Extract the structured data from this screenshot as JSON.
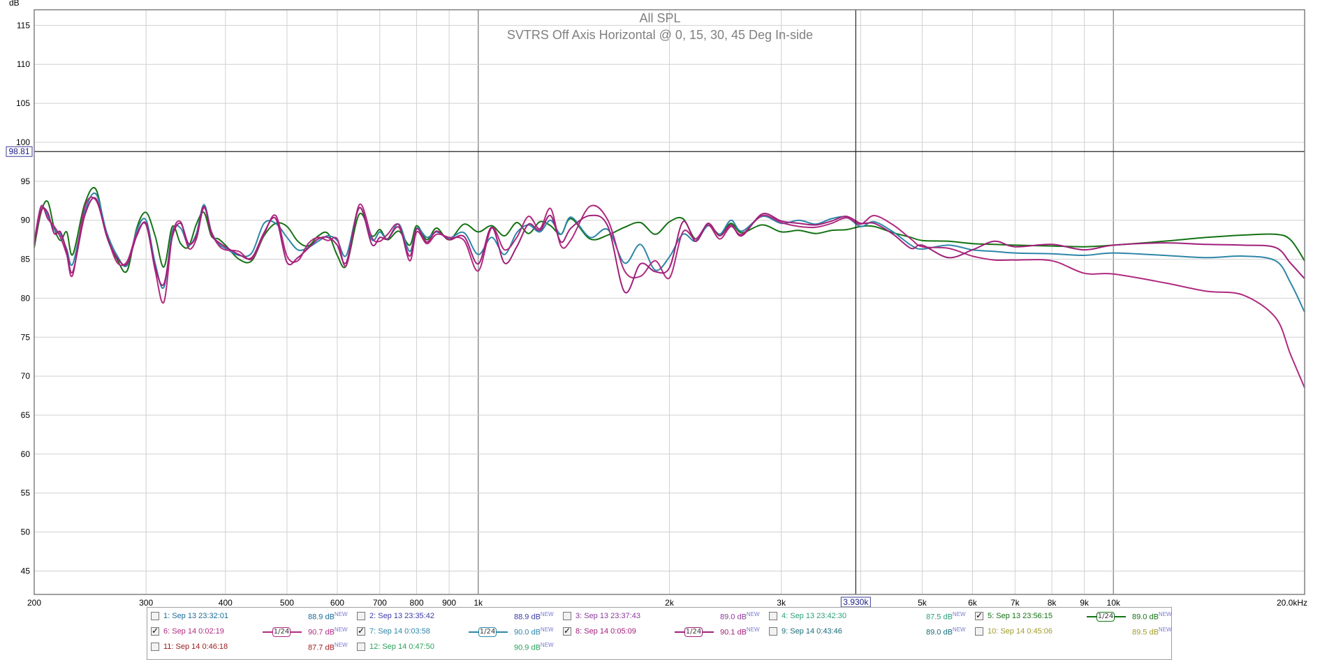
{
  "chart_data": {
    "type": "line",
    "title": "All SPL",
    "subtitle": "SVTRS Off Axis Horizontal @ 0, 15, 30, 45 Deg In-side",
    "ylabel": "dB",
    "xlabel": "",
    "x_scale": "log",
    "xlim": [
      200,
      20000
    ],
    "ylim": [
      42,
      117
    ],
    "grid": true,
    "y_ticks": [
      "45",
      "50",
      "55",
      "60",
      "65",
      "70",
      "75",
      "80",
      "85",
      "90",
      "95",
      "100",
      "105",
      "110",
      "115"
    ],
    "x_ticks": [
      {
        "v": 200,
        "label": "200"
      },
      {
        "v": 300,
        "label": "300"
      },
      {
        "v": 400,
        "label": "400"
      },
      {
        "v": 500,
        "label": "500"
      },
      {
        "v": 600,
        "label": "600"
      },
      {
        "v": 700,
        "label": "700"
      },
      {
        "v": 800,
        "label": "800"
      },
      {
        "v": 900,
        "label": "900"
      },
      {
        "v": 1000,
        "label": "1k"
      },
      {
        "v": 2000,
        "label": "2k"
      },
      {
        "v": 3000,
        "label": "3k"
      },
      {
        "v": 5000,
        "label": "5k"
      },
      {
        "v": 6000,
        "label": "6k"
      },
      {
        "v": 7000,
        "label": "7k"
      },
      {
        "v": 8000,
        "label": "8k"
      },
      {
        "v": 9000,
        "label": "9k"
      },
      {
        "v": 10000,
        "label": "10k"
      },
      {
        "v": 20000,
        "label": "20.0kHz"
      }
    ],
    "cursor": {
      "x": 3930,
      "x_label": "3.930k",
      "y": 98.81,
      "y_label": "98.81"
    },
    "series": [
      {
        "name": "5: Sep 13 23:56:15",
        "color": "#147214",
        "x": [
          200,
          205,
          210,
          215,
          220,
          225,
          230,
          240,
          250,
          260,
          270,
          280,
          290,
          300,
          310,
          320,
          330,
          340,
          350,
          360,
          370,
          380,
          390,
          400,
          420,
          440,
          460,
          480,
          500,
          520,
          540,
          560,
          580,
          600,
          620,
          650,
          680,
          700,
          720,
          750,
          780,
          800,
          830,
          860,
          900,
          950,
          1000,
          1050,
          1100,
          1150,
          1200,
          1250,
          1300,
          1350,
          1400,
          1500,
          1600,
          1700,
          1800,
          1900,
          2000,
          2100,
          2200,
          2300,
          2400,
          2500,
          2600,
          2800,
          3000,
          3200,
          3400,
          3600,
          3800,
          4000,
          4200,
          4500,
          4800,
          5000,
          5500,
          6000,
          6500,
          7000,
          8000,
          9000,
          10000,
          12000,
          14000,
          16000,
          18000,
          19000,
          20000
        ],
        "y": [
          86.5,
          91,
          92.4,
          89,
          87.4,
          88.5,
          85.6,
          92,
          94,
          88,
          85,
          83.5,
          89,
          91,
          88,
          84,
          89.2,
          87,
          86.6,
          89.5,
          91,
          88,
          87.6,
          86.8,
          85,
          84.8,
          88,
          89.6,
          89.2,
          87.3,
          86.7,
          88,
          88.3,
          85.5,
          84.2,
          90.8,
          88,
          88.8,
          87.5,
          88.6,
          86.8,
          89.3,
          87.5,
          89,
          87.5,
          89.5,
          88.5,
          89.3,
          88,
          89.7,
          88.3,
          89.8,
          89.3,
          88.2,
          90.2,
          87.6,
          88.1,
          89.1,
          89.7,
          88.2,
          89.8,
          90.2,
          87.6,
          89.4,
          88.2,
          89.6,
          88.4,
          89.4,
          88.5,
          88.7,
          88.3,
          88.7,
          88.8,
          89.2,
          89.2,
          88.4,
          87.8,
          87.4,
          87.3,
          87.0,
          86.9,
          86.8,
          86.7,
          86.6,
          86.8,
          87.3,
          87.8,
          88.1,
          88.2,
          87.5,
          84.8
        ]
      },
      {
        "name": "7: Sep 14 0:03:58",
        "color": "#2d86a8",
        "x": [
          200,
          205,
          210,
          215,
          220,
          225,
          230,
          240,
          250,
          260,
          270,
          280,
          290,
          300,
          310,
          320,
          330,
          340,
          350,
          360,
          370,
          380,
          390,
          400,
          420,
          440,
          460,
          480,
          500,
          520,
          540,
          560,
          580,
          600,
          620,
          650,
          680,
          700,
          720,
          750,
          780,
          800,
          830,
          860,
          900,
          950,
          1000,
          1050,
          1100,
          1150,
          1200,
          1250,
          1300,
          1350,
          1400,
          1500,
          1600,
          1700,
          1800,
          1900,
          2000,
          2100,
          2200,
          2300,
          2400,
          2500,
          2600,
          2800,
          3000,
          3200,
          3400,
          3600,
          3800,
          4000,
          4200,
          4500,
          4800,
          5000,
          5500,
          6000,
          6500,
          7000,
          8000,
          9000,
          10000,
          12000,
          14000,
          16000,
          18000,
          19000,
          20000
        ],
        "y": [
          87,
          91.6,
          90.6,
          88.8,
          88.2,
          86.3,
          84.4,
          91,
          93.4,
          88.5,
          85.5,
          84.2,
          88.7,
          90,
          84.5,
          81.4,
          88.6,
          89,
          86.8,
          88.3,
          92,
          88.6,
          87,
          86.4,
          85.5,
          85.8,
          89.6,
          89.6,
          87.8,
          86.2,
          86.5,
          87.3,
          88,
          87.4,
          85.5,
          91.6,
          87.5,
          88.5,
          87.6,
          89.5,
          86,
          89,
          87.8,
          88.5,
          87.7,
          88.4,
          85.6,
          87.8,
          85.6,
          88.4,
          89.4,
          88.5,
          90,
          88.2,
          90.4,
          87.8,
          88.8,
          84.5,
          86.9,
          83.6,
          85.3,
          88.2,
          87.3,
          89.3,
          88.2,
          90,
          88.6,
          90.5,
          89.6,
          90,
          89.5,
          90.2,
          90.4,
          89.2,
          89.8,
          88.5,
          86.8,
          86.3,
          86.8,
          86.2,
          86.0,
          85.8,
          85.7,
          85.5,
          85.8,
          85.5,
          85.2,
          85.4,
          84.8,
          82,
          78.2
        ]
      },
      {
        "name": "6: Sep 14 0:02:19",
        "color": "#b02a80",
        "x": [
          200,
          205,
          210,
          215,
          220,
          225,
          230,
          240,
          250,
          260,
          270,
          280,
          290,
          300,
          310,
          320,
          330,
          340,
          350,
          360,
          370,
          380,
          390,
          400,
          420,
          440,
          460,
          480,
          500,
          520,
          540,
          560,
          580,
          600,
          620,
          650,
          680,
          700,
          720,
          750,
          780,
          800,
          830,
          860,
          900,
          950,
          1000,
          1050,
          1100,
          1150,
          1200,
          1250,
          1300,
          1350,
          1400,
          1500,
          1600,
          1700,
          1800,
          1900,
          2000,
          2100,
          2200,
          2300,
          2400,
          2500,
          2600,
          2800,
          3000,
          3200,
          3400,
          3600,
          3800,
          4000,
          4200,
          4500,
          4800,
          5000,
          5500,
          6000,
          6500,
          7000,
          8000,
          9000,
          10000,
          12000,
          14000,
          16000,
          18000,
          19000,
          20000
        ],
        "y": [
          87.2,
          91.8,
          90.2,
          89.2,
          87.8,
          85.6,
          83,
          91.6,
          92.6,
          88.2,
          84.6,
          84.7,
          88.3,
          89.4,
          83.6,
          79.5,
          88.1,
          89.8,
          86.4,
          87.6,
          91.6,
          88.5,
          86.8,
          86.2,
          86,
          85,
          88.2,
          90.6,
          85.4,
          84.8,
          87,
          87.8,
          87.4,
          87.6,
          84.2,
          92,
          87.8,
          87.3,
          88.2,
          89.4,
          84.8,
          88.5,
          87,
          88.2,
          87.8,
          87.4,
          83.5,
          89,
          86.2,
          87.8,
          90.5,
          88.9,
          91.5,
          86.7,
          87.5,
          91.8,
          90,
          83.5,
          82.8,
          84.8,
          82.6,
          88.5,
          87.6,
          89.4,
          87.6,
          89.2,
          88.2,
          90.6,
          89.7,
          89.2,
          89.1,
          89.6,
          90.3,
          89.5,
          90.6,
          89.4,
          87.6,
          86.6,
          86.4,
          85.4,
          84.9,
          84.9,
          84.8,
          83.2,
          83.1,
          82.0,
          80.9,
          80.4,
          77.5,
          72.8,
          68.5
        ]
      },
      {
        "name": "8: Sep 14 0:05:09",
        "color": "#a0207a",
        "x": [
          200,
          205,
          210,
          215,
          220,
          225,
          230,
          240,
          250,
          260,
          270,
          280,
          290,
          300,
          310,
          320,
          330,
          340,
          350,
          360,
          370,
          380,
          390,
          400,
          420,
          440,
          460,
          480,
          500,
          520,
          540,
          560,
          580,
          600,
          620,
          650,
          680,
          700,
          720,
          750,
          780,
          800,
          830,
          860,
          900,
          950,
          1000,
          1050,
          1100,
          1150,
          1200,
          1250,
          1300,
          1350,
          1400,
          1500,
          1600,
          1700,
          1800,
          1900,
          2000,
          2100,
          2200,
          2300,
          2400,
          2500,
          2600,
          2800,
          3000,
          3200,
          3400,
          3600,
          3800,
          4000,
          4200,
          4500,
          4800,
          5000,
          5500,
          6000,
          6500,
          7000,
          8000,
          9000,
          10000,
          12000,
          14000,
          16000,
          18000,
          19000,
          20000
        ],
        "y": [
          86.8,
          91.2,
          91,
          88.3,
          88.5,
          86,
          83.4,
          90.5,
          92.8,
          88,
          85.2,
          84.4,
          88,
          89.6,
          84,
          81.8,
          87.9,
          89.6,
          87,
          88,
          91.8,
          88.2,
          87.2,
          86.6,
          85.6,
          85.2,
          88.4,
          90.2,
          84.6,
          85.2,
          86.4,
          87.6,
          87.8,
          86.8,
          84.6,
          91.6,
          86.9,
          87.8,
          87.6,
          89.1,
          85.4,
          88.9,
          87.2,
          88.6,
          87.5,
          87.9,
          84.4,
          89.1,
          84.5,
          86.6,
          89.5,
          88.7,
          90.6,
          87.2,
          89,
          90.6,
          89.2,
          80.8,
          84.4,
          83.4,
          83.9,
          89.8,
          87.3,
          89.6,
          88,
          89.4,
          88,
          90.8,
          89.9,
          89.6,
          89.4,
          89.9,
          90.5,
          89.6,
          89.6,
          88.2,
          86.4,
          86.8,
          85.2,
          86.2,
          87.3,
          86.6,
          86.9,
          86.2,
          86.8,
          87.1,
          86.9,
          86.8,
          86.5,
          84.5,
          82.5
        ]
      }
    ]
  },
  "legend": {
    "items": [
      {
        "label": "1: Sep 13 23:32:01",
        "value": "88.9 dB",
        "sup": "NEW",
        "checked": false,
        "color": "#1a6a9a"
      },
      {
        "label": "2: Sep 13 23:35:42",
        "value": "88.9 dB",
        "sup": "NEW",
        "checked": false,
        "color": "#3a3aa8"
      },
      {
        "label": "3: Sep 13 23:37:43",
        "value": "89.0 dB",
        "sup": "NEW",
        "checked": false,
        "color": "#8a3a9a"
      },
      {
        "label": "4: Sep 13 23:42:30",
        "value": "87.5 dB",
        "sup": "NEW",
        "checked": false,
        "color": "#2aa07a"
      },
      {
        "label": "5: Sep 13 23:56:15",
        "value": "89.0 dB",
        "sup": "NEW",
        "checked": true,
        "color": "#147214",
        "smoothing": "1/24"
      },
      {
        "label": "6: Sep 14 0:02:19",
        "value": "90.7 dB",
        "sup": "NEW",
        "checked": true,
        "color": "#b02a80",
        "smoothing": "1/24"
      },
      {
        "label": "7: Sep 14 0:03:58",
        "value": "90.0 dB",
        "sup": "NEW",
        "checked": true,
        "color": "#2d86a8",
        "smoothing": "1/24"
      },
      {
        "label": "8: Sep 14 0:05:09",
        "value": "90.1 dB",
        "sup": "NEW",
        "checked": true,
        "color": "#a0207a",
        "smoothing": "1/24"
      },
      {
        "label": "9: Sep 14 0:43:46",
        "value": "89.0 dB",
        "sup": "NEW",
        "checked": false,
        "color": "#1a6a7a"
      },
      {
        "label": "10: Sep 14 0:45:06",
        "value": "89.5 dB",
        "sup": "NEW",
        "checked": false,
        "color": "#a09a2a"
      },
      {
        "label": "11: Sep 14 0:46:18",
        "value": "87.7 dB",
        "sup": "NEW",
        "checked": false,
        "color": "#9a1a1a"
      },
      {
        "label": "12: Sep 14 0:47:50",
        "value": "90.9 dB",
        "sup": "NEW",
        "checked": false,
        "color": "#2aa05a"
      }
    ]
  }
}
